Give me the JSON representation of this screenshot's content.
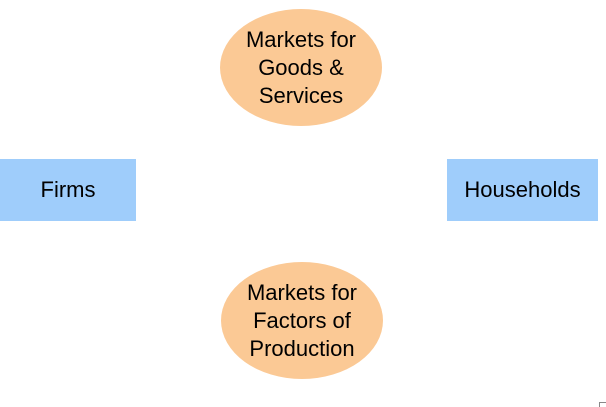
{
  "diagram": {
    "nodes": {
      "goods_market": {
        "label": "Markets for\nGoods &\nServices",
        "fill": "#fbc995"
      },
      "factor_market": {
        "label": "Markets for\nFactors of\nProduction",
        "fill": "#fbc995"
      },
      "firms": {
        "label": "Firms",
        "fill": "#9fcdfb"
      },
      "households": {
        "label": "Households",
        "fill": "#9fcdfb"
      }
    }
  }
}
